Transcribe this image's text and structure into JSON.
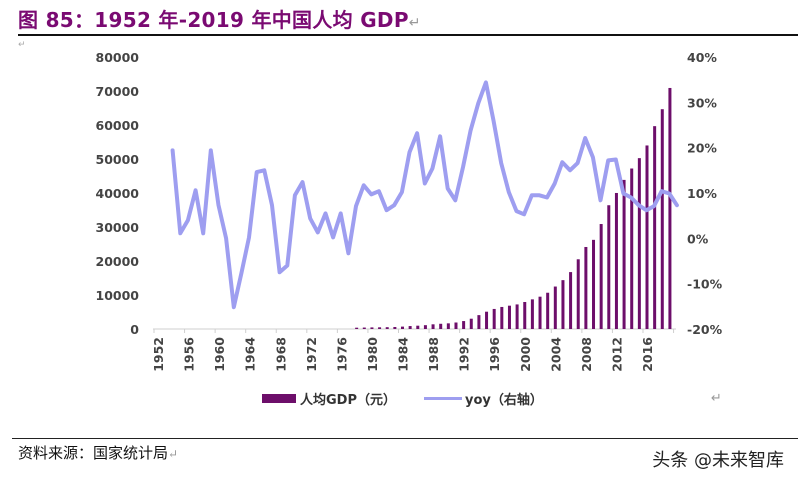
{
  "header": {
    "title": "图 85：1952 年-2019 年中国人均 GDP",
    "return_mark": "↵"
  },
  "footer": {
    "source": "资料来源：国家统计局",
    "return_mark": "↵",
    "watermark": "头条 @未来智库"
  },
  "chart_data": {
    "type": "bar+line",
    "title": "1952 年-2019 年中国人均 GDP",
    "x": [
      1952,
      1953,
      1954,
      1955,
      1956,
      1957,
      1958,
      1959,
      1960,
      1961,
      1962,
      1963,
      1964,
      1965,
      1966,
      1967,
      1968,
      1969,
      1970,
      1971,
      1972,
      1973,
      1974,
      1975,
      1976,
      1977,
      1978,
      1979,
      1980,
      1981,
      1982,
      1983,
      1984,
      1985,
      1986,
      1987,
      1988,
      1989,
      1990,
      1991,
      1992,
      1993,
      1994,
      1995,
      1996,
      1997,
      1998,
      1999,
      2000,
      2001,
      2002,
      2003,
      2004,
      2005,
      2006,
      2007,
      2008,
      2009,
      2010,
      2011,
      2012,
      2013,
      2014,
      2015,
      2016,
      2017,
      2018,
      2019
    ],
    "x_tick_labels": [
      "1952",
      "1956",
      "1960",
      "1964",
      "1968",
      "1972",
      "1976",
      "1980",
      "1984",
      "1988",
      "1992",
      "1996",
      "2000",
      "2004",
      "2008",
      "2012",
      "2016"
    ],
    "y_left": {
      "label": "",
      "range": [
        0,
        80000
      ],
      "tick_labels": [
        "80000",
        "70000",
        "60000",
        "50000",
        "40000",
        "30000",
        "20000",
        "10000",
        "0"
      ]
    },
    "y_right": {
      "label": "",
      "range": [
        -0.2,
        0.4
      ],
      "tick_labels": [
        "40%",
        "30%",
        "20%",
        "10%",
        "0%",
        "-10%",
        "-20%"
      ]
    },
    "series": [
      {
        "name": "人均GDP（元）",
        "type": "bar",
        "axis": "left",
        "color": "#6d0e6a",
        "values": [
          null,
          null,
          null,
          null,
          null,
          null,
          null,
          null,
          null,
          null,
          null,
          null,
          null,
          null,
          null,
          null,
          null,
          null,
          null,
          null,
          null,
          null,
          null,
          null,
          null,
          null,
          385,
          423,
          468,
          497,
          533,
          588,
          702,
          866,
          973,
          1123,
          1378,
          1536,
          1663,
          1912,
          2334,
          3027,
          4081,
          5091,
          5898,
          6481,
          6860,
          7229,
          7942,
          8717,
          9506,
          10666,
          12487,
          14368,
          16738,
          20505,
          24121,
          26222,
          30876,
          36403,
          40007,
          43852,
          47203,
          50251,
          53980,
          59660,
          64644,
          70892
        ]
      },
      {
        "name": "yoy（右轴）",
        "type": "line",
        "axis": "right",
        "color": "#9e9ef0",
        "values": [
          null,
          0.194,
          0.011,
          0.04,
          0.106,
          0.011,
          0.194,
          0.073,
          0.0,
          -0.152,
          -0.077,
          0.002,
          0.146,
          0.15,
          0.073,
          -0.075,
          -0.06,
          0.095,
          0.124,
          0.044,
          0.013,
          0.055,
          0.002,
          0.055,
          -0.033,
          0.071,
          0.117,
          0.097,
          0.104,
          0.062,
          0.073,
          0.102,
          0.19,
          0.232,
          0.121,
          0.154,
          0.225,
          0.11,
          0.084,
          0.157,
          0.238,
          0.298,
          0.344,
          0.26,
          0.166,
          0.102,
          0.06,
          0.053,
          0.095,
          0.095,
          0.09,
          0.121,
          0.168,
          0.15,
          0.166,
          0.221,
          0.179,
          0.084,
          0.172,
          0.174,
          0.099,
          0.09,
          0.073,
          0.062,
          0.071,
          0.104,
          0.099,
          0.073
        ]
      }
    ],
    "legend": {
      "position": "bottom",
      "entries": [
        "人均GDP（元）",
        "yoy（右轴）"
      ]
    },
    "grid": false
  }
}
